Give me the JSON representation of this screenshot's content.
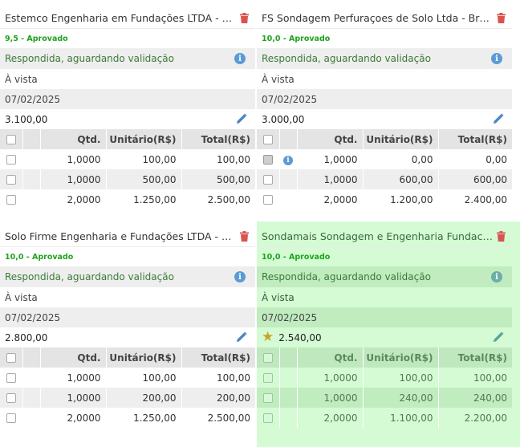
{
  "colors": {
    "approved": "#1fa31f",
    "status_text": "#3b7a3b",
    "info": "#5b9bd5",
    "trash": "#d9534f",
    "winner_bg": "#d4fbd4",
    "star": "#c9a227"
  },
  "table_headers": {
    "qtd": "Qtd.",
    "unit": "Unitário(R$)",
    "total": "Total(R$)"
  },
  "proposals": [
    {
      "supplier": "Estemco Engenharia em Fundações LTDA - Gabriel",
      "grade": "9,5 - Aprovado",
      "status": "Respondida, aguardando validação",
      "payment": "À vista",
      "date": "07/02/2025",
      "price": "3.100,00",
      "items": [
        {
          "qtd": "1,0000",
          "unit": "100,00",
          "total": "100,00"
        },
        {
          "qtd": "1,0000",
          "unit": "500,00",
          "total": "500,00"
        },
        {
          "qtd": "2,0000",
          "unit": "1.250,00",
          "total": "2.500,00"
        }
      ]
    },
    {
      "supplier": "FS Sondagem Perfuraçoes de Solo Ltda - Bruna",
      "grade": "10,0 - Aprovado",
      "status": "Respondida, aguardando validação",
      "payment": "À vista",
      "date": "07/02/2025",
      "price": "3.000,00",
      "items": [
        {
          "qtd": "1,0000",
          "unit": "0,00",
          "total": "0,00"
        },
        {
          "qtd": "1,0000",
          "unit": "600,00",
          "total": "600,00"
        },
        {
          "qtd": "2,0000",
          "unit": "1.200,00",
          "total": "2.400,00"
        }
      ]
    },
    {
      "supplier": "Solo Firme Engenharia e Fundações LTDA - Daniel",
      "grade": "10,0 - Aprovado",
      "status": "Respondida, aguardando validação",
      "payment": "À vista",
      "date": "07/02/2025",
      "price": "2.800,00",
      "items": [
        {
          "qtd": "1,0000",
          "unit": "100,00",
          "total": "100,00"
        },
        {
          "qtd": "1,0000",
          "unit": "200,00",
          "total": "200,00"
        },
        {
          "qtd": "2,0000",
          "unit": "1.250,00",
          "total": "2.500,00"
        }
      ]
    },
    {
      "supplier": "Sondamais Sondagem e Engenharia Fundacoes Lt...",
      "grade": "10,0 - Aprovado",
      "status": "Respondida, aguardando validação",
      "payment": "À vista",
      "date": "07/02/2025",
      "price": "2.540,00",
      "items": [
        {
          "qtd": "1,0000",
          "unit": "100,00",
          "total": "100,00"
        },
        {
          "qtd": "1,0000",
          "unit": "240,00",
          "total": "240,00"
        },
        {
          "qtd": "2,0000",
          "unit": "1.100,00",
          "total": "2.200,00"
        }
      ]
    }
  ]
}
